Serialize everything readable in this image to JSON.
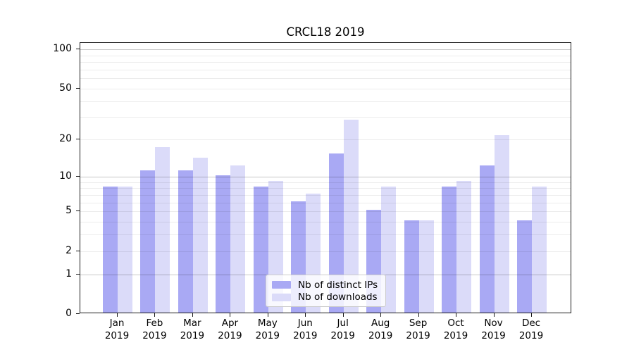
{
  "title": "CRCL18 2019",
  "chart_data": {
    "type": "bar",
    "title": "CRCL18 2019",
    "categories": [
      "Jan 2019",
      "Feb 2019",
      "Mar 2019",
      "Apr 2019",
      "May 2019",
      "Jun 2019",
      "Jul 2019",
      "Aug 2019",
      "Sep 2019",
      "Oct 2019",
      "Nov 2019",
      "Dec 2019"
    ],
    "series": [
      {
        "name": "Nb of distinct IPs",
        "color": "#a9a9f4",
        "values": [
          8,
          11,
          11,
          10,
          8,
          6,
          15,
          5,
          4,
          8,
          12,
          4
        ]
      },
      {
        "name": "Nb of downloads",
        "color": "#dbdbf9",
        "values": [
          8,
          17,
          14,
          12,
          9,
          7,
          28,
          8,
          4,
          9,
          21,
          8
        ]
      }
    ],
    "xlabel": "",
    "ylabel": "",
    "yscale": "log1p",
    "ylim": [
      0,
      112
    ],
    "ytick_values": [
      100,
      50,
      20,
      10,
      5,
      2,
      1,
      0
    ],
    "ytick_labels": [
      "100",
      "50",
      "20",
      "10",
      "5",
      "2",
      "1",
      "0"
    ],
    "major_gridline_values": [
      1,
      10,
      100
    ],
    "minor_gridline_values": [
      2,
      3,
      4,
      5,
      6,
      7,
      8,
      9,
      20,
      30,
      40,
      50,
      60,
      70,
      80,
      90
    ],
    "grid": "on",
    "legend_position": "lower center"
  }
}
